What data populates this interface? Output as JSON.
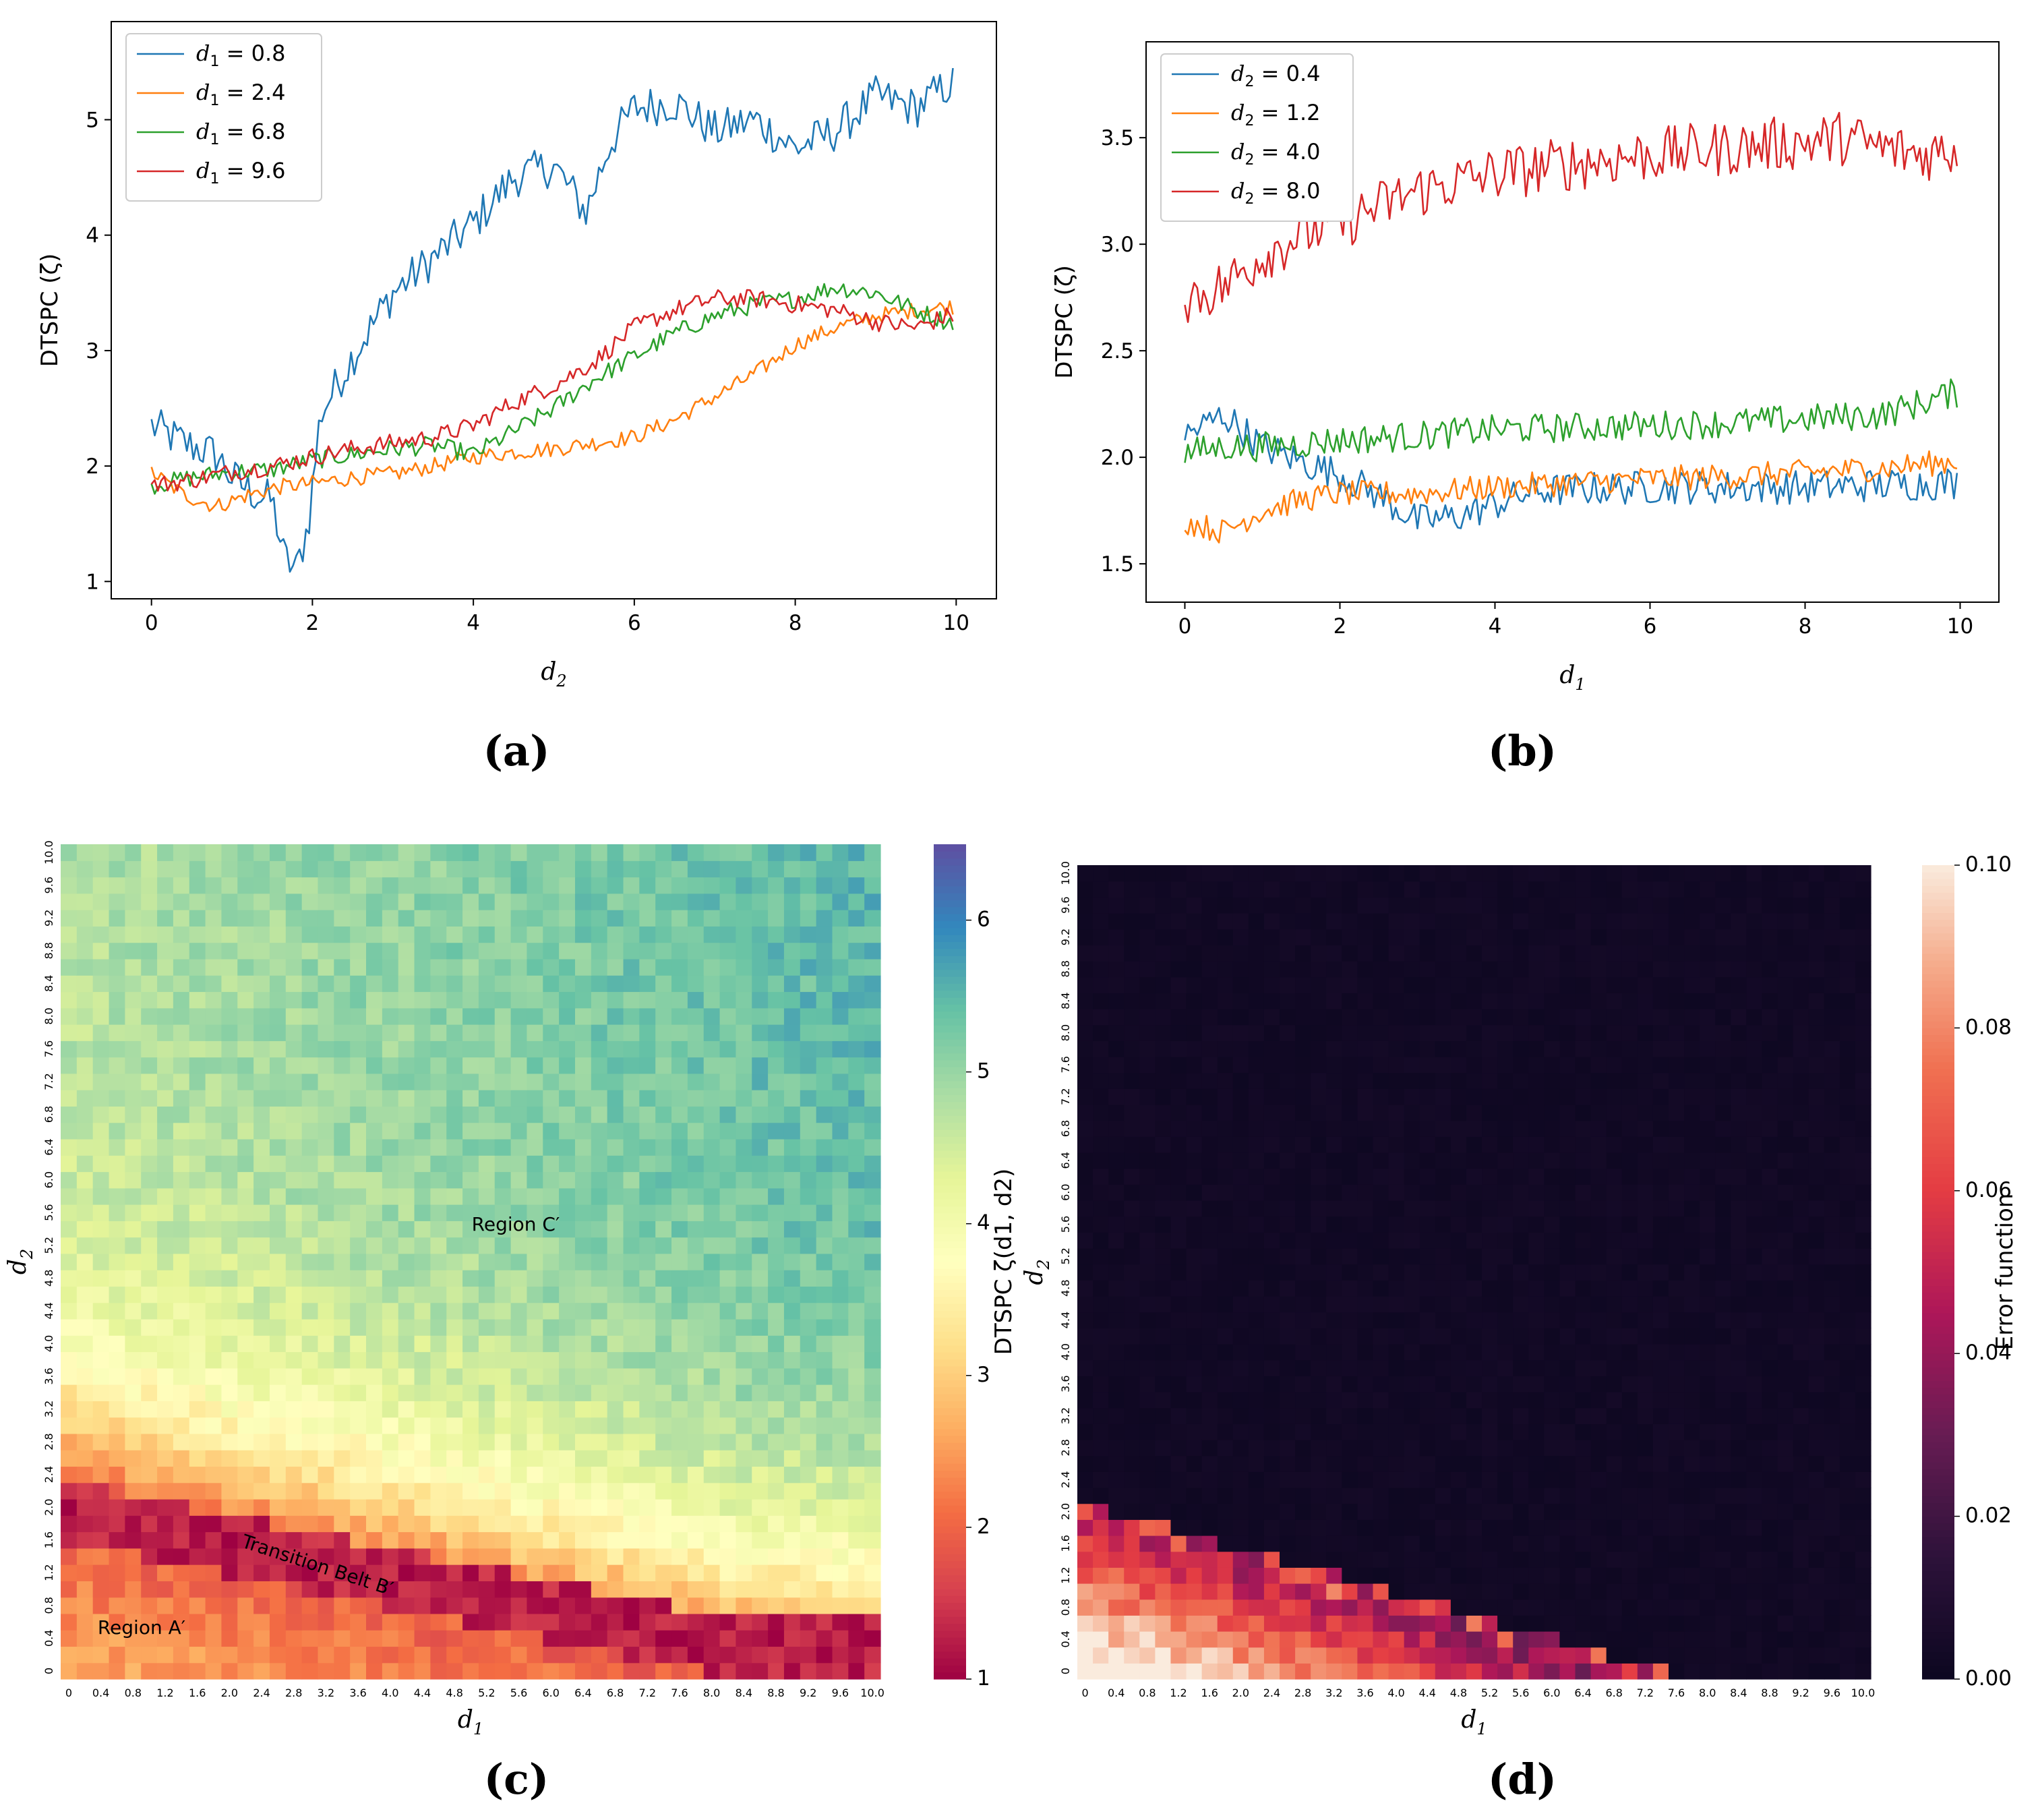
{
  "chart_data": [
    {
      "panel": "(a)",
      "type": "line",
      "ylabel": "DTSPC (ζ)",
      "xlabel": "d2",
      "xlim": [
        -0.5,
        10.5
      ],
      "ylim": [
        0.85,
        5.85
      ],
      "xticks": [
        "0",
        "2",
        "4",
        "6",
        "8",
        "10"
      ],
      "yticks": [
        "1",
        "2",
        "3",
        "4",
        "5"
      ],
      "legend": "top-left",
      "series": [
        {
          "name": "d1 = 0.8",
          "label_var": "d",
          "label_sub": "1",
          "label_val": " = 0.8",
          "color": "#1f77b4",
          "points": [
            [
              0,
              2.35
            ],
            [
              0.4,
              2.2
            ],
            [
              0.8,
              2.1
            ],
            [
              1.0,
              1.9
            ],
            [
              1.3,
              1.75
            ],
            [
              1.5,
              1.7
            ],
            [
              1.65,
              1.2
            ],
            [
              1.8,
              1.1
            ],
            [
              1.95,
              1.5
            ],
            [
              2.1,
              2.45
            ],
            [
              2.5,
              2.95
            ],
            [
              3.0,
              3.5
            ],
            [
              3.5,
              3.8
            ],
            [
              4.0,
              4.1
            ],
            [
              4.5,
              4.5
            ],
            [
              5.0,
              4.6
            ],
            [
              5.4,
              4.2
            ],
            [
              5.7,
              4.8
            ],
            [
              6.0,
              5.1
            ],
            [
              6.5,
              5.15
            ],
            [
              7.0,
              4.9
            ],
            [
              7.5,
              5.0
            ],
            [
              8.0,
              4.75
            ],
            [
              8.5,
              4.9
            ],
            [
              9.0,
              5.2
            ],
            [
              9.5,
              5.1
            ],
            [
              9.9,
              5.3
            ]
          ]
        },
        {
          "name": "d1 = 2.4",
          "label_var": "d",
          "label_sub": "1",
          "label_val": " = 2.4",
          "color": "#ff7f0e",
          "points": [
            [
              0,
              1.95
            ],
            [
              0.4,
              1.75
            ],
            [
              0.8,
              1.65
            ],
            [
              1.2,
              1.75
            ],
            [
              1.6,
              1.82
            ],
            [
              2.0,
              1.85
            ],
            [
              2.5,
              1.9
            ],
            [
              3.0,
              1.93
            ],
            [
              3.5,
              2.0
            ],
            [
              4.0,
              2.08
            ],
            [
              4.5,
              2.12
            ],
            [
              5.0,
              2.15
            ],
            [
              5.5,
              2.2
            ],
            [
              6.0,
              2.25
            ],
            [
              6.5,
              2.4
            ],
            [
              7.0,
              2.6
            ],
            [
              7.5,
              2.8
            ],
            [
              8.0,
              3.05
            ],
            [
              8.5,
              3.2
            ],
            [
              9.0,
              3.3
            ],
            [
              9.5,
              3.35
            ],
            [
              9.9,
              3.38
            ]
          ]
        },
        {
          "name": "d1 = 6.8",
          "label_var": "d",
          "label_sub": "1",
          "label_val": " = 6.8",
          "color": "#2ca02c",
          "points": [
            [
              0,
              1.83
            ],
            [
              0.5,
              1.9
            ],
            [
              1.0,
              1.95
            ],
            [
              1.5,
              1.97
            ],
            [
              2.0,
              2.05
            ],
            [
              2.5,
              2.1
            ],
            [
              3.0,
              2.15
            ],
            [
              3.5,
              2.18
            ],
            [
              4.0,
              2.1
            ],
            [
              4.5,
              2.3
            ],
            [
              5.0,
              2.5
            ],
            [
              5.5,
              2.75
            ],
            [
              6.0,
              2.95
            ],
            [
              6.5,
              3.15
            ],
            [
              7.0,
              3.3
            ],
            [
              7.5,
              3.4
            ],
            [
              8.0,
              3.45
            ],
            [
              8.5,
              3.55
            ],
            [
              9.0,
              3.5
            ],
            [
              9.5,
              3.35
            ],
            [
              9.9,
              3.25
            ]
          ]
        },
        {
          "name": "d1 = 9.6",
          "label_var": "d",
          "label_sub": "1",
          "label_val": " = 9.6",
          "color": "#d62728",
          "points": [
            [
              0,
              1.83
            ],
            [
              0.5,
              1.88
            ],
            [
              1.0,
              1.95
            ],
            [
              1.5,
              2.0
            ],
            [
              2.0,
              2.08
            ],
            [
              2.5,
              2.15
            ],
            [
              3.0,
              2.2
            ],
            [
              3.5,
              2.25
            ],
            [
              4.0,
              2.35
            ],
            [
              4.5,
              2.55
            ],
            [
              5.0,
              2.7
            ],
            [
              5.5,
              2.9
            ],
            [
              6.0,
              3.2
            ],
            [
              6.5,
              3.35
            ],
            [
              7.0,
              3.45
            ],
            [
              7.5,
              3.45
            ],
            [
              8.0,
              3.4
            ],
            [
              8.5,
              3.35
            ],
            [
              9.0,
              3.25
            ],
            [
              9.5,
              3.2
            ],
            [
              9.9,
              3.3
            ]
          ]
        }
      ]
    },
    {
      "panel": "(b)",
      "type": "line",
      "ylabel": "DTSPC (ζ)",
      "xlabel": "d1",
      "xlim": [
        -0.5,
        10.5
      ],
      "ylim": [
        1.32,
        3.95
      ],
      "xticks": [
        "0",
        "2",
        "4",
        "6",
        "8",
        "10"
      ],
      "yticks": [
        "1.5",
        "2.0",
        "2.5",
        "3.0",
        "3.5"
      ],
      "legend": "top-left",
      "series": [
        {
          "name": "d2 = 0.4",
          "label_var": "d",
          "label_sub": "2",
          "label_val": " = 0.4",
          "color": "#1f77b4",
          "points": [
            [
              0,
              2.1
            ],
            [
              0.5,
              2.2
            ],
            [
              1.0,
              2.05
            ],
            [
              1.5,
              1.98
            ],
            [
              2.0,
              1.92
            ],
            [
              2.5,
              1.82
            ],
            [
              3.0,
              1.7
            ],
            [
              3.5,
              1.72
            ],
            [
              4.0,
              1.78
            ],
            [
              4.5,
              1.84
            ],
            [
              5.0,
              1.85
            ],
            [
              6.0,
              1.86
            ],
            [
              7.0,
              1.86
            ],
            [
              8.0,
              1.86
            ],
            [
              9.0,
              1.87
            ],
            [
              9.9,
              1.88
            ]
          ]
        },
        {
          "name": "d2 = 1.2",
          "label_var": "d",
          "label_sub": "2",
          "label_val": " = 1.2",
          "color": "#ff7f0e",
          "points": [
            [
              0,
              1.7
            ],
            [
              0.5,
              1.65
            ],
            [
              1.0,
              1.75
            ],
            [
              1.5,
              1.8
            ],
            [
              2.0,
              1.83
            ],
            [
              3.0,
              1.83
            ],
            [
              4.0,
              1.86
            ],
            [
              5.0,
              1.88
            ],
            [
              6.0,
              1.9
            ],
            [
              7.0,
              1.91
            ],
            [
              8.0,
              1.93
            ],
            [
              9.0,
              1.95
            ],
            [
              9.9,
              1.98
            ]
          ]
        },
        {
          "name": "d2 = 4.0",
          "label_var": "d",
          "label_sub": "2",
          "label_val": " = 4.0",
          "color": "#2ca02c",
          "points": [
            [
              0,
              2.02
            ],
            [
              0.5,
              2.05
            ],
            [
              1.0,
              2.05
            ],
            [
              2.0,
              2.08
            ],
            [
              3.0,
              2.1
            ],
            [
              4.0,
              2.13
            ],
            [
              5.0,
              2.14
            ],
            [
              6.0,
              2.15
            ],
            [
              7.0,
              2.16
            ],
            [
              8.0,
              2.18
            ],
            [
              9.0,
              2.2
            ],
            [
              9.9,
              2.3
            ]
          ]
        },
        {
          "name": "d2 = 8.0",
          "label_var": "d",
          "label_sub": "2",
          "label_val": " = 8.0",
          "color": "#d62728",
          "points": [
            [
              0,
              2.75
            ],
            [
              0.5,
              2.8
            ],
            [
              1.0,
              2.95
            ],
            [
              1.5,
              3.05
            ],
            [
              2.0,
              3.1
            ],
            [
              3.0,
              3.25
            ],
            [
              4.0,
              3.33
            ],
            [
              5.0,
              3.38
            ],
            [
              6.0,
              3.42
            ],
            [
              7.0,
              3.45
            ],
            [
              8.0,
              3.48
            ],
            [
              8.5,
              3.5
            ],
            [
              9.0,
              3.45
            ],
            [
              9.5,
              3.42
            ],
            [
              9.9,
              3.45
            ]
          ]
        }
      ]
    },
    {
      "panel": "(c)",
      "type": "heatmap",
      "xlabel": "d1",
      "ylabel": "d2",
      "grid_size": 51,
      "range": [
        0,
        10
      ],
      "step": 0.2,
      "colorbar_label": "DTSPC ζ(d1, d2)",
      "colorbar_ticks": [
        "1",
        "2",
        "3",
        "4",
        "5",
        "6"
      ],
      "colorbar_range": [
        1,
        6.5
      ],
      "colormap": "Spectral",
      "xticks": [
        "0",
        "0.4",
        "0.8",
        "1.2",
        "1.6",
        "2.0",
        "2.4",
        "2.8",
        "3.2",
        "3.6",
        "4.0",
        "4.4",
        "4.8",
        "5.2",
        "5.6",
        "6.0",
        "6.4",
        "6.8",
        "7.2",
        "7.6",
        "8.0",
        "8.4",
        "8.8",
        "9.2",
        "9.6",
        "10.0"
      ],
      "yticks": [
        "0",
        "0.4",
        "0.8",
        "1.2",
        "1.6",
        "2.0",
        "2.4",
        "2.8",
        "3.2",
        "3.6",
        "4.0",
        "4.4",
        "4.8",
        "5.2",
        "5.6",
        "6.0",
        "6.4",
        "6.8",
        "7.2",
        "7.6",
        "8.0",
        "8.4",
        "8.8",
        "9.2",
        "9.6",
        "10.0"
      ],
      "annotations": [
        "Region C′",
        "Transition Belt B′",
        "Region A′"
      ]
    },
    {
      "panel": "(d)",
      "type": "heatmap",
      "xlabel": "d1",
      "ylabel": "d2",
      "grid_size": 51,
      "range": [
        0,
        10
      ],
      "step": 0.2,
      "colorbar_label": "Error function",
      "colorbar_ticks": [
        "0.00",
        "0.02",
        "0.04",
        "0.06",
        "0.08",
        "0.10"
      ],
      "colorbar_range": [
        0,
        0.1
      ],
      "colormap": "rocket",
      "xticks": [
        "0",
        "0.4",
        "0.8",
        "1.2",
        "1.6",
        "2.0",
        "2.4",
        "2.8",
        "3.2",
        "3.6",
        "4.0",
        "4.4",
        "4.8",
        "5.2",
        "5.6",
        "6.0",
        "6.4",
        "6.8",
        "7.2",
        "7.6",
        "8.0",
        "8.4",
        "8.8",
        "9.2",
        "9.6",
        "10.0"
      ],
      "yticks": [
        "0",
        "0.4",
        "0.8",
        "1.2",
        "1.6",
        "2.0",
        "2.4",
        "2.8",
        "3.2",
        "3.6",
        "4.0",
        "4.4",
        "4.8",
        "5.2",
        "5.6",
        "6.0",
        "6.4",
        "6.8",
        "7.2",
        "7.6",
        "8.0",
        "8.4",
        "8.8",
        "9.2",
        "9.6",
        "10.0"
      ]
    }
  ]
}
